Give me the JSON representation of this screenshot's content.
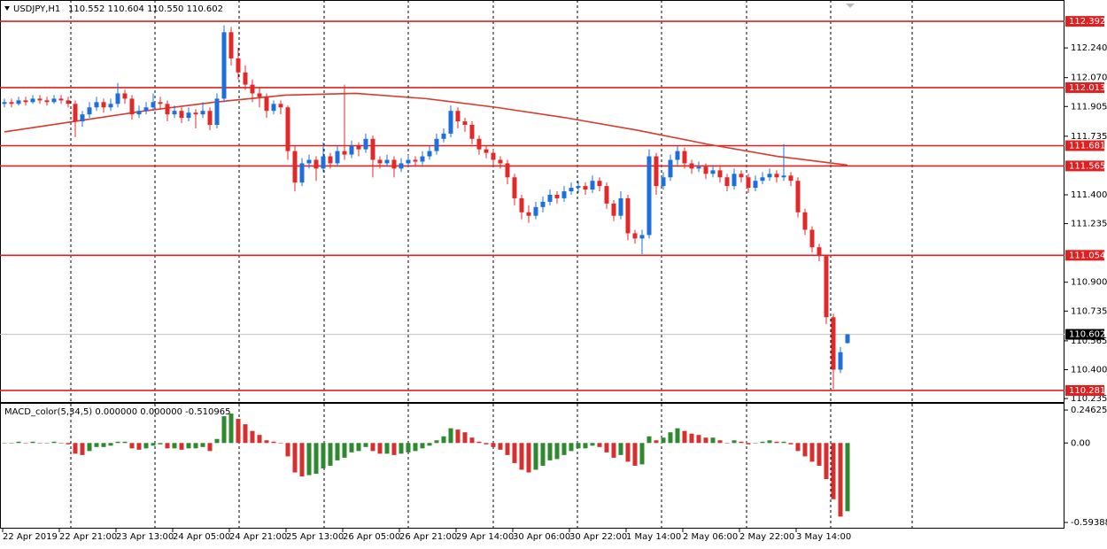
{
  "chart_data": {
    "type": "candlestick",
    "title": "USDJPY,H1",
    "ohlc_text": "110.552 110.604 110.550 110.602",
    "ylim": [
      110.21,
      112.514
    ],
    "yticks": [
      {
        "value": 112.24,
        "label": "112.240"
      },
      {
        "value": 112.07,
        "label": "112.070"
      },
      111.905,
      111.735,
      {
        "value": 111.4,
        "label": "111.400"
      },
      111.235,
      {
        "value": 110.9,
        "label": "110.900"
      },
      110.735,
      110.565,
      {
        "value": 110.4,
        "label": "110.400"
      },
      110.235
    ],
    "up_color": "#1e6fd9",
    "down_color": "#e02a2a",
    "candles": [
      [
        111.92,
        111.95,
        111.9,
        111.93
      ],
      [
        111.93,
        111.95,
        111.9,
        111.92
      ],
      [
        111.92,
        111.96,
        111.91,
        111.94
      ],
      [
        111.94,
        111.96,
        111.91,
        111.93
      ],
      [
        111.93,
        111.97,
        111.92,
        111.95
      ],
      [
        111.95,
        111.97,
        111.92,
        111.94
      ],
      [
        111.94,
        111.96,
        111.91,
        111.93
      ],
      [
        111.93,
        111.97,
        111.92,
        111.95
      ],
      [
        111.95,
        111.97,
        111.92,
        111.94
      ],
      [
        111.94,
        111.96,
        111.9,
        111.92
      ],
      [
        111.92,
        111.94,
        111.73,
        111.82
      ],
      [
        111.82,
        111.88,
        111.79,
        111.86
      ],
      [
        111.86,
        111.93,
        111.84,
        111.9
      ],
      [
        111.9,
        111.96,
        111.88,
        111.93
      ],
      [
        111.93,
        111.95,
        111.87,
        111.9
      ],
      [
        111.9,
        111.95,
        111.88,
        111.92
      ],
      [
        111.92,
        112.04,
        111.9,
        111.98
      ],
      [
        111.98,
        112.0,
        111.92,
        111.95
      ],
      [
        111.95,
        111.97,
        111.83,
        111.86
      ],
      [
        111.86,
        111.91,
        111.84,
        111.88
      ],
      [
        111.88,
        111.93,
        111.86,
        111.9
      ],
      [
        111.9,
        111.98,
        111.88,
        111.93
      ],
      [
        111.93,
        111.96,
        111.89,
        111.92
      ],
      [
        111.92,
        111.94,
        111.82,
        111.86
      ],
      [
        111.86,
        111.91,
        111.84,
        111.88
      ],
      [
        111.88,
        111.9,
        111.81,
        111.84
      ],
      [
        111.84,
        111.9,
        111.82,
        111.87
      ],
      [
        111.87,
        111.89,
        111.78,
        111.86
      ],
      [
        111.86,
        111.93,
        111.84,
        111.88
      ],
      [
        111.88,
        111.9,
        111.77,
        111.8
      ],
      [
        111.8,
        111.98,
        111.78,
        111.95
      ],
      [
        111.95,
        112.37,
        111.93,
        112.33
      ],
      [
        112.33,
        112.36,
        112.14,
        112.18
      ],
      [
        112.18,
        112.24,
        112.06,
        112.1
      ],
      [
        112.1,
        112.14,
        112.0,
        112.03
      ],
      [
        112.03,
        112.06,
        111.93,
        111.98
      ],
      [
        111.98,
        112.01,
        111.9,
        111.96
      ],
      [
        111.96,
        111.98,
        111.84,
        111.88
      ],
      [
        111.88,
        111.94,
        111.86,
        111.92
      ],
      [
        111.92,
        111.94,
        111.86,
        111.9
      ],
      [
        111.9,
        111.91,
        111.6,
        111.65
      ],
      [
        111.65,
        111.68,
        111.42,
        111.47
      ],
      [
        111.47,
        111.61,
        111.45,
        111.58
      ],
      [
        111.58,
        111.63,
        111.55,
        111.6
      ],
      [
        111.6,
        111.62,
        111.48,
        111.55
      ],
      [
        111.55,
        111.7,
        111.53,
        111.62
      ],
      [
        111.62,
        111.64,
        111.55,
        111.58
      ],
      [
        111.58,
        111.68,
        111.56,
        111.65
      ],
      [
        111.65,
        112.03,
        111.6,
        111.63
      ],
      [
        111.63,
        111.71,
        111.61,
        111.68
      ],
      [
        111.68,
        111.7,
        111.62,
        111.66
      ],
      [
        111.66,
        111.75,
        111.64,
        111.72
      ],
      [
        111.72,
        111.74,
        111.5,
        111.6
      ],
      [
        111.6,
        111.62,
        111.55,
        111.58
      ],
      [
        111.58,
        111.63,
        111.56,
        111.6
      ],
      [
        111.6,
        111.62,
        111.5,
        111.55
      ],
      [
        111.55,
        111.61,
        111.53,
        111.58
      ],
      [
        111.58,
        111.63,
        111.56,
        111.6
      ],
      [
        111.6,
        111.62,
        111.56,
        111.59
      ],
      [
        111.59,
        111.65,
        111.57,
        111.62
      ],
      [
        111.62,
        111.68,
        111.6,
        111.65
      ],
      [
        111.65,
        111.75,
        111.63,
        111.72
      ],
      [
        111.72,
        111.78,
        111.7,
        111.75
      ],
      [
        111.75,
        111.91,
        111.73,
        111.88
      ],
      [
        111.88,
        111.9,
        111.78,
        111.82
      ],
      [
        111.82,
        111.84,
        111.76,
        111.8
      ],
      [
        111.8,
        111.82,
        111.69,
        111.72
      ],
      [
        111.72,
        111.74,
        111.63,
        111.66
      ],
      [
        111.66,
        111.68,
        111.61,
        111.64
      ],
      [
        111.64,
        111.66,
        111.57,
        111.6
      ],
      [
        111.6,
        111.62,
        111.55,
        111.58
      ],
      [
        111.58,
        111.6,
        111.46,
        111.5
      ],
      [
        111.5,
        111.52,
        111.34,
        111.38
      ],
      [
        111.38,
        111.4,
        111.26,
        111.3
      ],
      [
        111.3,
        111.34,
        111.24,
        111.28
      ],
      [
        111.28,
        111.36,
        111.26,
        111.33
      ],
      [
        111.33,
        111.39,
        111.3,
        111.36
      ],
      [
        111.36,
        111.43,
        111.34,
        111.4
      ],
      [
        111.4,
        111.42,
        111.35,
        111.38
      ],
      [
        111.38,
        111.45,
        111.36,
        111.42
      ],
      [
        111.42,
        111.47,
        111.4,
        111.44
      ],
      [
        111.44,
        111.48,
        111.41,
        111.45
      ],
      [
        111.45,
        111.47,
        111.4,
        111.43
      ],
      [
        111.43,
        111.51,
        111.41,
        111.48
      ],
      [
        111.48,
        111.5,
        111.42,
        111.45
      ],
      [
        111.45,
        111.47,
        111.32,
        111.35
      ],
      [
        111.35,
        111.37,
        111.25,
        111.28
      ],
      [
        111.28,
        111.42,
        111.26,
        111.38
      ],
      [
        111.38,
        111.4,
        111.14,
        111.18
      ],
      [
        111.18,
        111.2,
        111.12,
        111.15
      ],
      [
        111.15,
        111.2,
        111.06,
        111.17
      ],
      [
        111.17,
        111.66,
        111.15,
        111.62
      ],
      [
        111.62,
        111.64,
        111.4,
        111.45
      ],
      [
        111.45,
        111.53,
        111.43,
        111.5
      ],
      [
        111.5,
        111.63,
        111.48,
        111.6
      ],
      [
        111.6,
        111.68,
        111.57,
        111.65
      ],
      [
        111.65,
        111.67,
        111.55,
        111.58
      ],
      [
        111.58,
        111.6,
        111.52,
        111.55
      ],
      [
        111.55,
        111.59,
        111.53,
        111.56
      ],
      [
        111.56,
        111.58,
        111.49,
        111.52
      ],
      [
        111.52,
        111.57,
        111.5,
        111.54
      ],
      [
        111.54,
        111.56,
        111.47,
        111.5
      ],
      [
        111.5,
        111.52,
        111.42,
        111.45
      ],
      [
        111.45,
        111.55,
        111.43,
        111.52
      ],
      [
        111.52,
        111.54,
        111.47,
        111.5
      ],
      [
        111.5,
        111.52,
        111.41,
        111.44
      ],
      [
        111.44,
        111.51,
        111.42,
        111.48
      ],
      [
        111.48,
        111.53,
        111.46,
        111.5
      ],
      [
        111.5,
        111.55,
        111.48,
        111.52
      ],
      [
        111.52,
        111.54,
        111.47,
        111.5
      ],
      [
        111.5,
        111.69,
        111.48,
        111.51
      ],
      [
        111.51,
        111.53,
        111.45,
        111.48
      ],
      [
        111.48,
        111.5,
        111.27,
        111.3
      ],
      [
        111.3,
        111.32,
        111.17,
        111.2
      ],
      [
        111.2,
        111.22,
        111.07,
        111.1
      ],
      [
        111.1,
        111.12,
        111.02,
        111.05
      ],
      [
        111.05,
        111.05,
        110.66,
        110.7
      ],
      [
        110.7,
        110.72,
        110.29,
        110.4
      ],
      [
        110.4,
        110.53,
        110.38,
        110.5
      ],
      [
        110.552,
        110.604,
        110.55,
        110.602
      ]
    ],
    "ma": {
      "color": "#d93a2b",
      "values": [
        111.76,
        111.82,
        111.88,
        111.93,
        111.97,
        111.98,
        111.95,
        111.9,
        111.84,
        111.77,
        111.69,
        111.62,
        111.57
      ]
    },
    "levels": {
      "color": "#e02020",
      "values": [
        112.392,
        112.013,
        111.681,
        111.565,
        111.054,
        110.281
      ]
    },
    "current": 110.602,
    "x_labels": [
      "22 Apr 2019",
      "22 Apr 21:00",
      "23 Apr 13:00",
      "24 Apr 05:00",
      "24 Apr 21:00",
      "25 Apr 13:00",
      "26 Apr 05:00",
      "26 Apr 21:00",
      "29 Apr 14:00",
      "30 Apr 06:00",
      "30 Apr 22:00",
      "1 May 14:00",
      "2 May 06:00",
      "2 May 22:00",
      "3 May 14:00"
    ],
    "macd": {
      "type": "bar",
      "title": "MACD_color(5,34,5) 0.000000 0.000000 -0.510965",
      "ylim": [
        -0.64,
        0.293
      ],
      "yticks": [
        0.246251,
        {
          "value": 0,
          "label": "0.00"
        },
        -0.593882
      ],
      "up_color": "#2f8a2f",
      "down_color": "#d43030",
      "values": [
        0.0,
        0.0,
        0.01,
        0.0,
        0.01,
        0.0,
        0.0,
        0.01,
        0.0,
        -0.01,
        -0.08,
        -0.09,
        -0.06,
        -0.03,
        -0.03,
        -0.02,
        0.01,
        0.01,
        -0.04,
        -0.05,
        -0.04,
        -0.02,
        -0.01,
        -0.04,
        -0.04,
        -0.05,
        -0.04,
        -0.04,
        -0.03,
        -0.06,
        0.03,
        0.2,
        0.22,
        0.18,
        0.14,
        0.09,
        0.06,
        0.02,
        0.01,
        0.0,
        -0.1,
        -0.22,
        -0.25,
        -0.24,
        -0.23,
        -0.19,
        -0.17,
        -0.13,
        -0.11,
        -0.07,
        -0.06,
        -0.03,
        -0.06,
        -0.08,
        -0.08,
        -0.09,
        -0.08,
        -0.07,
        -0.06,
        -0.04,
        -0.02,
        0.02,
        0.05,
        0.11,
        0.1,
        0.08,
        0.04,
        0.01,
        -0.01,
        -0.03,
        -0.05,
        -0.09,
        -0.15,
        -0.2,
        -0.22,
        -0.2,
        -0.17,
        -0.13,
        -0.12,
        -0.09,
        -0.06,
        -0.04,
        -0.04,
        -0.02,
        -0.03,
        -0.07,
        -0.11,
        -0.09,
        -0.14,
        -0.17,
        -0.16,
        0.05,
        0.02,
        0.04,
        0.08,
        0.11,
        0.09,
        0.07,
        0.06,
        0.04,
        0.04,
        0.02,
        0.0,
        0.02,
        0.01,
        -0.01,
        0.0,
        0.01,
        0.02,
        0.01,
        0.01,
        -0.01,
        -0.06,
        -0.1,
        -0.14,
        -0.17,
        -0.27,
        -0.42,
        -0.55,
        -0.51
      ]
    }
  }
}
